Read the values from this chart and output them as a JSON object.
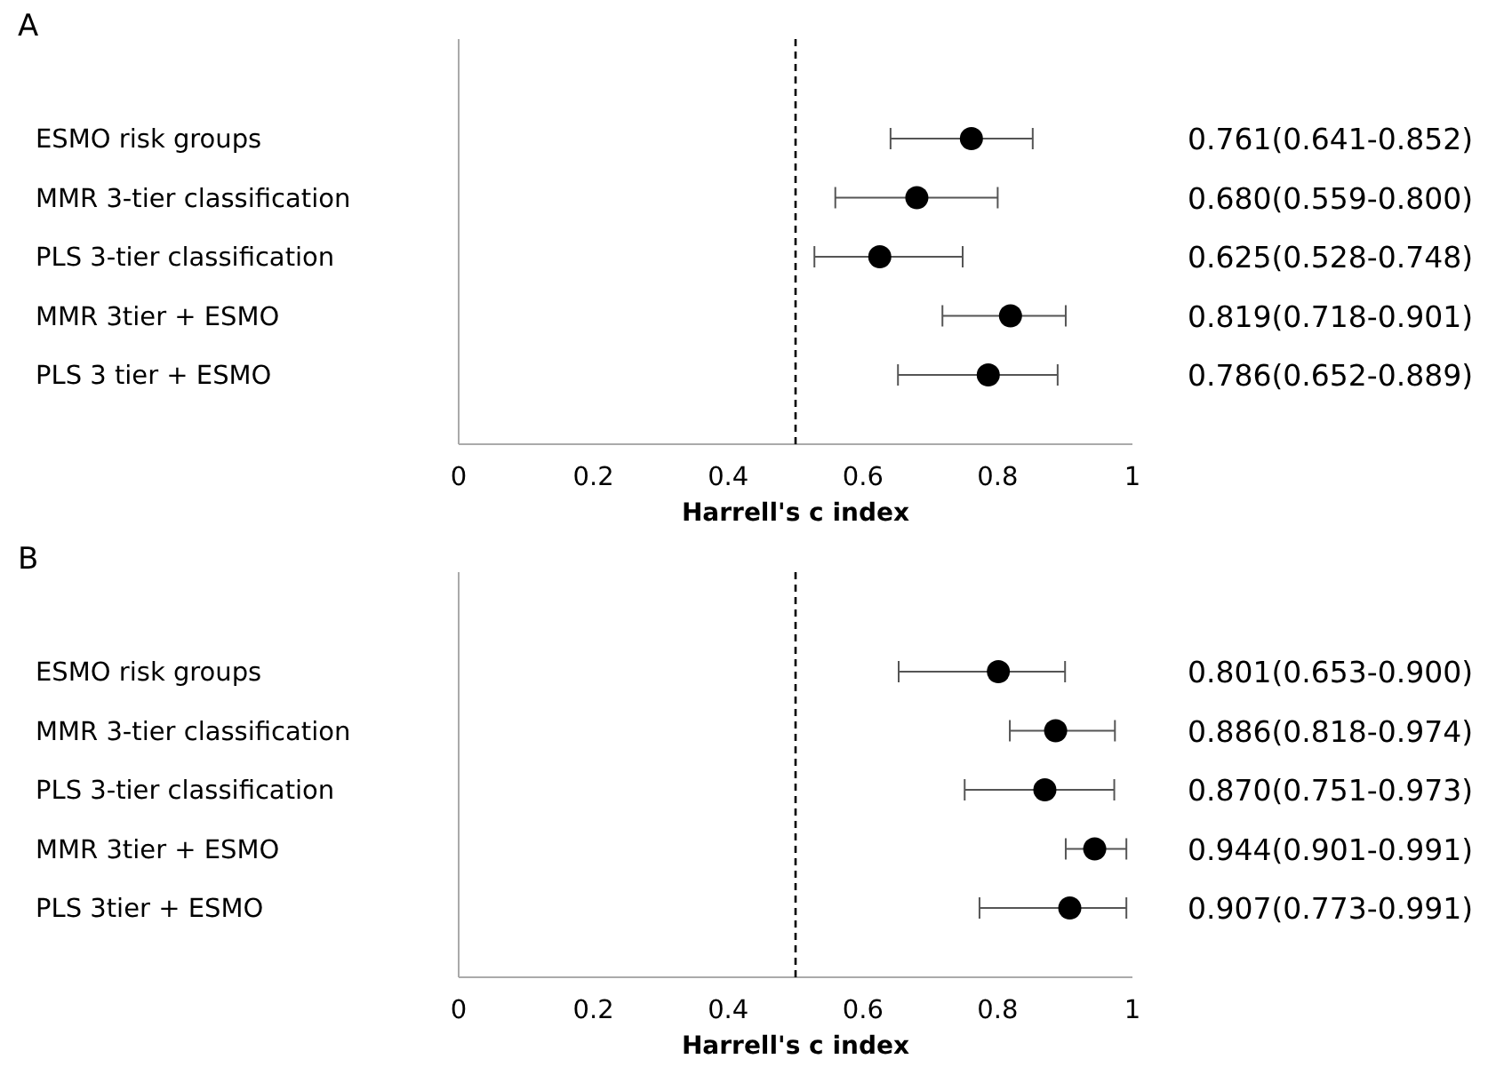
{
  "chart_data": [
    {
      "type": "scatter",
      "title": "A",
      "orientation": "horizontal",
      "categories": [
        "ESMO risk groups",
        "MMR 3-tier classification",
        "PLS 3-tier classification",
        "MMR 3tier + ESMO",
        "PLS 3 tier + ESMO"
      ],
      "values": [
        0.761,
        0.68,
        0.625,
        0.819,
        0.786
      ],
      "errors": [
        [
          0.641,
          0.852
        ],
        [
          0.559,
          0.8
        ],
        [
          0.528,
          0.748
        ],
        [
          0.718,
          0.901
        ],
        [
          0.652,
          0.889
        ]
      ],
      "value_labels": [
        "0.761(0.641-0.852)",
        "0.680(0.559-0.800)",
        "0.625(0.528-0.748)",
        "0.819(0.718-0.901)",
        "0.786(0.652-0.889)"
      ],
      "color": "#000000",
      "marker": "circle",
      "xlim": [
        0,
        1
      ],
      "xticks": [
        0,
        0.2,
        0.4,
        0.6,
        0.8,
        1
      ],
      "xlabel": "Harrell's c index",
      "ref_lines": [
        {
          "axis": "x",
          "value": 0.5,
          "line_style": "dashed",
          "color": "#000000"
        }
      ]
    },
    {
      "type": "scatter",
      "title": "B",
      "orientation": "horizontal",
      "categories": [
        "ESMO risk groups",
        "MMR 3-tier classification",
        "PLS 3-tier classification",
        "MMR 3tier + ESMO",
        "PLS 3tier + ESMO"
      ],
      "values": [
        0.801,
        0.886,
        0.87,
        0.944,
        0.907
      ],
      "errors": [
        [
          0.653,
          0.9
        ],
        [
          0.818,
          0.974
        ],
        [
          0.751,
          0.973
        ],
        [
          0.901,
          0.991
        ],
        [
          0.773,
          0.991
        ]
      ],
      "value_labels": [
        "0.801(0.653-0.900)",
        "0.886(0.818-0.974)",
        "0.870(0.751-0.973)",
        "0.944(0.901-0.991)",
        "0.907(0.773-0.991)"
      ],
      "color": "#000000",
      "marker": "circle",
      "xlim": [
        0,
        1
      ],
      "xticks": [
        0,
        0.2,
        0.4,
        0.6,
        0.8,
        1
      ],
      "xlabel": "Harrell's c index",
      "ref_lines": [
        {
          "axis": "x",
          "value": 0.5,
          "line_style": "dashed",
          "color": "#000000"
        }
      ]
    }
  ]
}
